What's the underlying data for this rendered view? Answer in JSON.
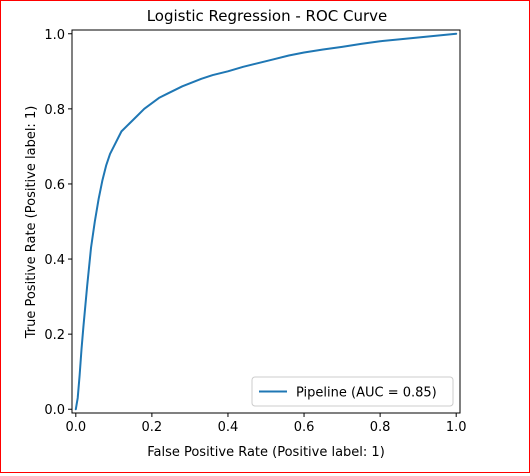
{
  "chart_data": {
    "type": "line",
    "title": "Logistic Regression - ROC Curve",
    "xlabel": "False Positive Rate (Positive label: 1)",
    "ylabel": "True Positive Rate (Positive label: 1)",
    "xlim": [
      -0.01,
      1.01
    ],
    "ylim": [
      -0.01,
      1.01
    ],
    "x_ticks": [
      0.0,
      0.2,
      0.4,
      0.6,
      0.8,
      1.0
    ],
    "y_ticks": [
      0.0,
      0.2,
      0.4,
      0.6,
      0.8,
      1.0
    ],
    "x_tick_labels": [
      "0.0",
      "0.2",
      "0.4",
      "0.6",
      "0.8",
      "1.0"
    ],
    "y_tick_labels": [
      "0.0",
      "0.2",
      "0.4",
      "0.6",
      "0.8",
      "1.0"
    ],
    "grid": false,
    "legend_position": "bottom-right",
    "series": [
      {
        "name": "Pipeline (AUC = 0.85)",
        "color": "#1f77b4",
        "x": [
          0.0,
          0.005,
          0.01,
          0.015,
          0.02,
          0.03,
          0.04,
          0.05,
          0.06,
          0.07,
          0.08,
          0.09,
          0.1,
          0.12,
          0.14,
          0.16,
          0.18,
          0.2,
          0.22,
          0.24,
          0.26,
          0.28,
          0.3,
          0.33,
          0.36,
          0.4,
          0.44,
          0.48,
          0.52,
          0.56,
          0.6,
          0.65,
          0.7,
          0.75,
          0.8,
          0.85,
          0.9,
          0.95,
          1.0
        ],
        "y": [
          0.0,
          0.03,
          0.09,
          0.16,
          0.22,
          0.33,
          0.43,
          0.5,
          0.56,
          0.61,
          0.65,
          0.68,
          0.7,
          0.74,
          0.76,
          0.78,
          0.8,
          0.815,
          0.83,
          0.84,
          0.85,
          0.86,
          0.868,
          0.88,
          0.89,
          0.9,
          0.912,
          0.922,
          0.932,
          0.942,
          0.95,
          0.958,
          0.965,
          0.973,
          0.98,
          0.985,
          0.99,
          0.995,
          1.0
        ]
      }
    ]
  }
}
